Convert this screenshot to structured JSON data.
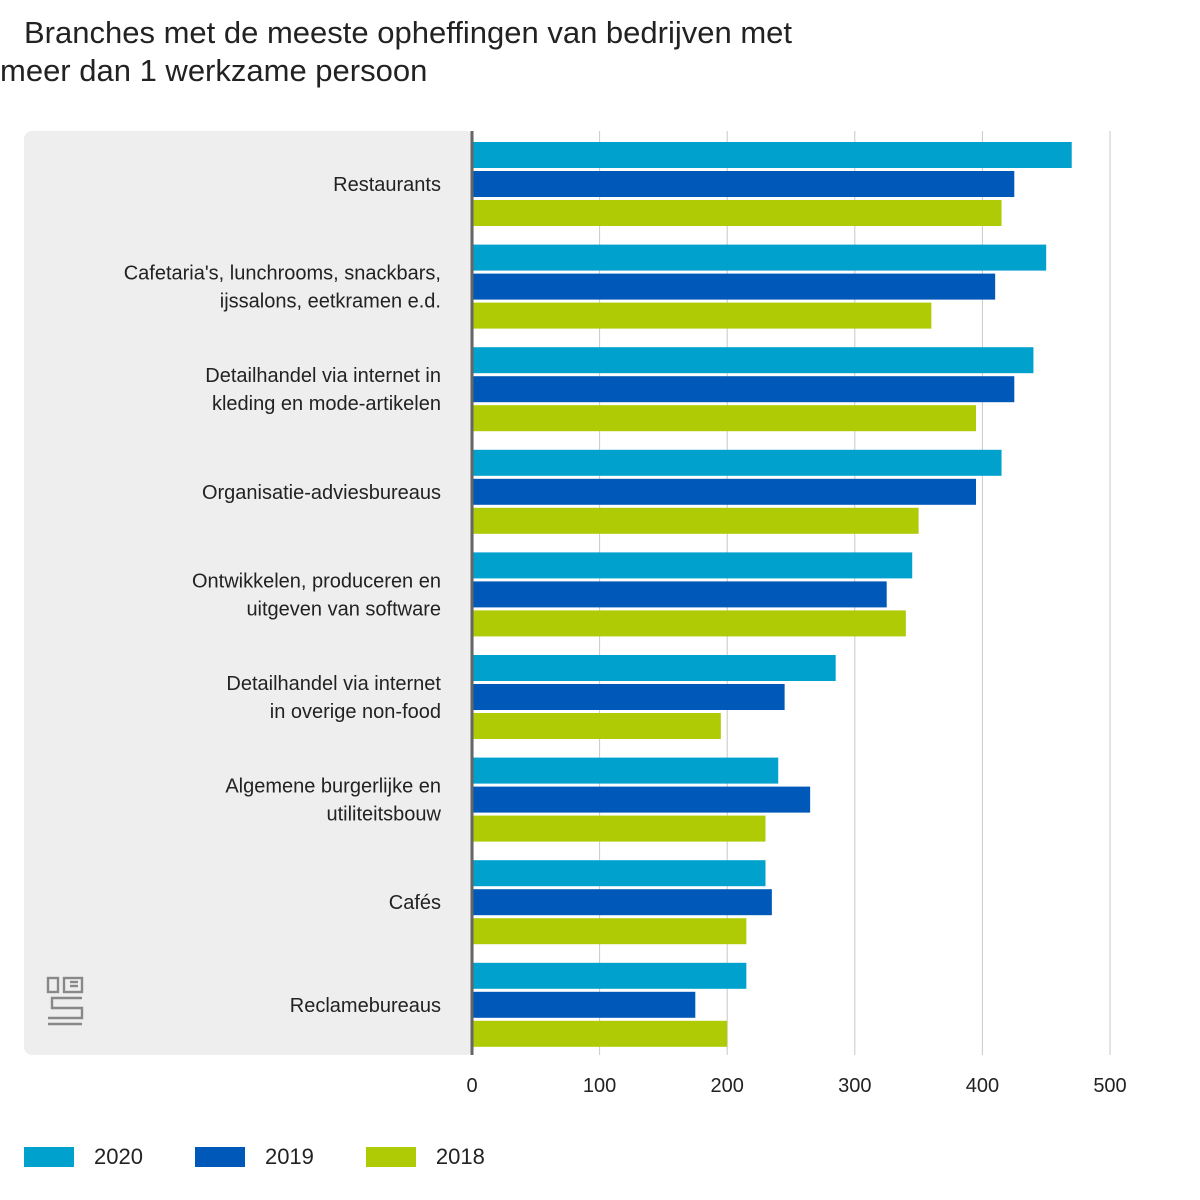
{
  "chart_data": {
    "type": "bar",
    "orientation": "horizontal",
    "title_line1": "Branches met de meeste opheffingen van bedrijven met",
    "title_line2": "meer dan 1 werkzame persoon",
    "categories": [
      [
        "Restaurants"
      ],
      [
        "Cafetaria's, lunchrooms, snackbars,",
        "ijssalons, eetkramen e.d."
      ],
      [
        "Detailhandel via internet in",
        "kleding en mode-artikelen"
      ],
      [
        "Organisatie-adviesbureaus"
      ],
      [
        "Ontwikkelen, produceren en",
        "uitgeven van software"
      ],
      [
        "Detailhandel via internet",
        "in overige non-food"
      ],
      [
        "Algemene burgerlijke en",
        "utiliteitsbouw"
      ],
      [
        "Cafés"
      ],
      [
        "Reclamebureaus"
      ]
    ],
    "series": [
      {
        "name": "2020",
        "color": "#00a1cd",
        "values": [
          470,
          450,
          440,
          415,
          345,
          285,
          240,
          230,
          215
        ]
      },
      {
        "name": "2019",
        "color": "#0058b8",
        "values": [
          425,
          410,
          425,
          395,
          325,
          245,
          265,
          235,
          175
        ]
      },
      {
        "name": "2018",
        "color": "#afcb05",
        "values": [
          415,
          360,
          395,
          350,
          340,
          195,
          230,
          215,
          200
        ]
      }
    ],
    "xlim": [
      0,
      500
    ],
    "xticks": [
      "0",
      "100",
      "200",
      "300",
      "400",
      "500"
    ],
    "grid": true,
    "legend_position": "bottom-left"
  },
  "logo": {
    "name": "cbs-logo-icon",
    "text": "cbs"
  }
}
